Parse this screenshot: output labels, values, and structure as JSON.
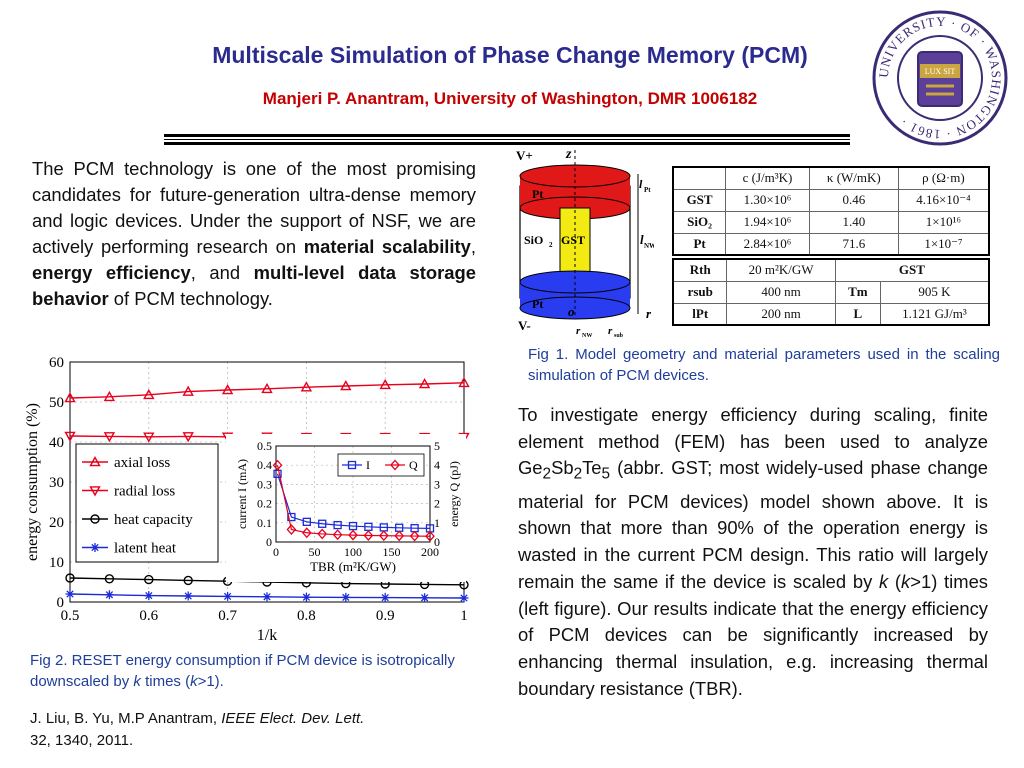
{
  "header": {
    "title": "Multiscale Simulation of Phase Change Memory (PCM)",
    "subtitle": "Manjeri P. Anantram, University of Washington, DMR 1006182"
  },
  "logo": {
    "text": "UNIVERSITY · OF · WASHINGTON · 1861 ·",
    "motto": "LUX SIT"
  },
  "intro": {
    "text1": "The PCM technology is one of the most promising  candidates for future-generation ultra-dense memory and logic devices. Under the support of NSF, we are actively performing research on ",
    "bold1": "material scalability",
    "text2": ", ",
    "bold2": "energy efficiency",
    "text3": ", and ",
    "bold3": "multi-level data storage behavior",
    "text4": " of PCM technology."
  },
  "fig1": {
    "labels": {
      "vplus": "V+",
      "z": "z",
      "pt_top": "Pt",
      "lpt": "l",
      "lpt_sub": "Pt",
      "sio2": "SiO",
      "sio2_sub": "2",
      "gst": "GST",
      "lnw": "l",
      "lnw_sub": "NW",
      "pt_bot": "Pt",
      "o": "o",
      "vminus": "V-",
      "r": "r",
      "rnw": "r",
      "rnw_sub": "NW",
      "rsub": "r",
      "rsub_sub": "sub"
    },
    "table1": {
      "headers": [
        "",
        "c (J/m³K)",
        "κ (W/mK)",
        "ρ (Ω·m)"
      ],
      "rows": [
        [
          "GST",
          "1.30×10⁶",
          "0.46",
          "4.16×10⁻⁴"
        ],
        [
          "SiO₂",
          "1.94×10⁶",
          "1.40",
          "1×10¹⁶"
        ],
        [
          "Pt",
          "2.84×10⁶",
          "71.6",
          "1×10⁻⁷"
        ]
      ]
    },
    "table2": {
      "rows": [
        [
          "Rth",
          "20 m²K/GW",
          "GST",
          ""
        ],
        [
          "rsub",
          "400 nm",
          "Tm",
          "905 K"
        ],
        [
          "lPt",
          "200 nm",
          "L",
          "1.121 GJ/m³"
        ]
      ]
    },
    "caption": "Fig 1. Model geometry and material parameters used in the scaling simulation of PCM devices."
  },
  "body": {
    "p1": "To investigate energy efficiency during scaling, finite element method (FEM) has been used to analyze Ge",
    "s1": "2",
    "p2": "Sb",
    "s2": "2",
    "p3": "Te",
    "s3": "5",
    "p4": " (abbr. GST; most widely-used phase change material for PCM devices) model shown above. It is shown that more than 90% of the operation energy is wasted in the current PCM design. This ratio will largely remain the same if the device is scaled by ",
    "k1": "k",
    "p5": " (",
    "k2": "k",
    "p6": ">1) times (left figure). Our results indicate that the energy efficiency of PCM devices can be significantly increased by enhancing thermal insulation, e.g. increasing thermal boundary resistance (TBR)."
  },
  "fig2": {
    "caption1": "Fig 2. RESET energy consumption if PCM device is isotropically downscaled by ",
    "k1": "k",
    "caption2": " times (",
    "k2": "k",
    "caption3": ">1)."
  },
  "reference": {
    "authors": "J. Liu, B. Yu, M.P Anantram, ",
    "journal": "IEEE Elect. Dev. Lett.",
    "details": "32, 1340, 2011."
  },
  "chart_data": [
    {
      "type": "line",
      "xlabel": "1/k",
      "ylabel": "energy consumption (%)",
      "xlim": [
        0.5,
        1
      ],
      "ylim": [
        0,
        60
      ],
      "xticks": [
        "0.5",
        "0.6",
        "0.7",
        "0.8",
        "0.9",
        "1"
      ],
      "yticks": [
        "0",
        "10",
        "20",
        "30",
        "40",
        "50",
        "60"
      ],
      "grid": true,
      "legend_position": "center-left",
      "x": [
        0.5,
        0.55,
        0.6,
        0.65,
        0.7,
        0.75,
        0.8,
        0.85,
        0.9,
        0.95,
        1.0
      ],
      "series": [
        {
          "name": "axial loss",
          "color": "#e8001c",
          "marker": "triangle-up",
          "values": [
            51,
            51.3,
            51.8,
            52.6,
            53,
            53.3,
            53.7,
            54,
            54.3,
            54.5,
            54.8
          ]
        },
        {
          "name": "radial loss",
          "color": "#e8001c",
          "marker": "triangle-down",
          "values": [
            41.5,
            41.4,
            41.3,
            41.4,
            41.3,
            41.3,
            41.2,
            41.2,
            41.2,
            41.2,
            41.2
          ]
        },
        {
          "name": "heat capacity",
          "color": "#000000",
          "marker": "circle",
          "values": [
            6,
            5.8,
            5.6,
            5.4,
            5.2,
            5.0,
            4.8,
            4.6,
            4.5,
            4.4,
            4.3
          ]
        },
        {
          "name": "latent heat",
          "color": "#1a2bd8",
          "marker": "asterisk",
          "values": [
            2.0,
            1.8,
            1.6,
            1.5,
            1.4,
            1.3,
            1.2,
            1.15,
            1.1,
            1.05,
            1.0
          ]
        }
      ]
    },
    {
      "type": "line",
      "xlabel": "TBR (m²K/GW)",
      "ylabel_left": "current I (mA)",
      "ylabel_right": "energy Q (pJ)",
      "xlim": [
        0,
        200
      ],
      "ylim_left": [
        0,
        0.5
      ],
      "ylim_right": [
        0,
        5
      ],
      "xticks": [
        "0",
        "50",
        "100",
        "150",
        "200"
      ],
      "yticks_left": [
        "0",
        "0.1",
        "0.2",
        "0.3",
        "0.4",
        "0.5"
      ],
      "yticks_right": [
        "0",
        "1",
        "2",
        "3",
        "4",
        "5"
      ],
      "legend_position": "top-right",
      "x": [
        2,
        20,
        40,
        60,
        80,
        100,
        120,
        140,
        160,
        180,
        200
      ],
      "series": [
        {
          "name": "I",
          "axis": "left",
          "color": "#1a2bd8",
          "marker": "square",
          "values": [
            0.355,
            0.13,
            0.105,
            0.095,
            0.088,
            0.083,
            0.079,
            0.076,
            0.074,
            0.072,
            0.071
          ]
        },
        {
          "name": "Q",
          "axis": "right",
          "color": "#e8001c",
          "marker": "diamond",
          "values": [
            4.0,
            0.65,
            0.48,
            0.42,
            0.38,
            0.36,
            0.34,
            0.33,
            0.32,
            0.31,
            0.3
          ]
        }
      ]
    }
  ]
}
